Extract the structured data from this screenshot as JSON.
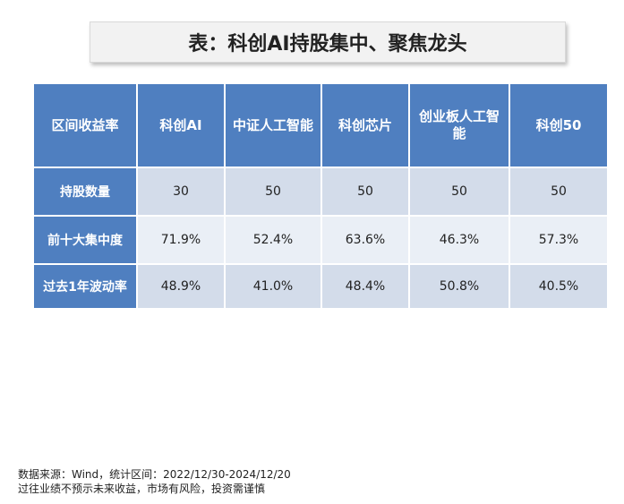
{
  "title": "表：科创AI持股集中、聚焦龙头",
  "table": {
    "corner": "区间收益率",
    "columns": [
      "科创AI",
      "中证人工智能",
      "科创芯片",
      "创业板人工智能",
      "科创50"
    ],
    "rows": [
      {
        "label": "持股数量",
        "values": [
          "30",
          "50",
          "50",
          "50",
          "50"
        ]
      },
      {
        "label": "前十大集中度",
        "values": [
          "71.9%",
          "52.4%",
          "63.6%",
          "46.3%",
          "57.3%"
        ]
      },
      {
        "label": "过去1年波动率",
        "values": [
          "48.9%",
          "41.0%",
          "48.4%",
          "50.8%",
          "40.5%"
        ]
      }
    ]
  },
  "footer": {
    "source": "数据来源：Wind，统计区间：2022/12/30-2024/12/20",
    "disclaimer": "过往业绩不预示未来收益，市场有风险，投资需谨慎"
  }
}
